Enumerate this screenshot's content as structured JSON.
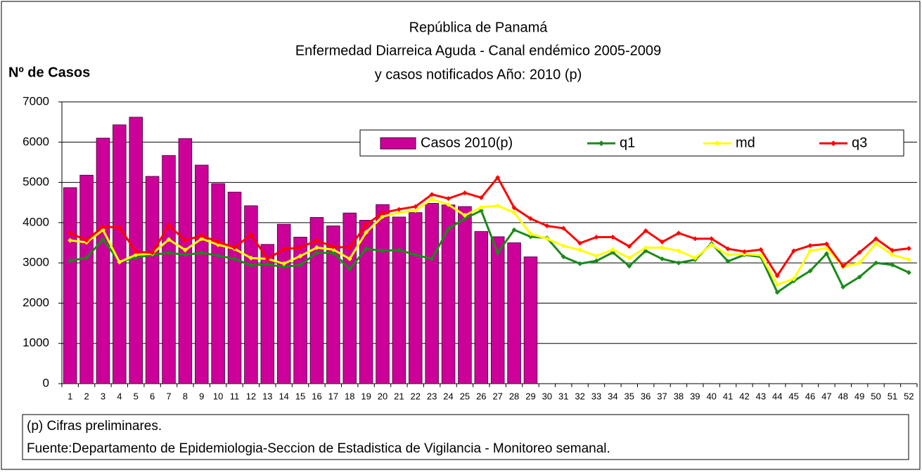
{
  "chart_data": {
    "type": "bar_line",
    "title": [
      "República de Panamá",
      "Enfermedad Diarreica Aguda - Canal endémico 2005-2009",
      "y casos notificados Año: 2010 (p)"
    ],
    "y_label": "Nº de Casos",
    "categories": [
      "1",
      "2",
      "3",
      "4",
      "5",
      "6",
      "7",
      "8",
      "9",
      "10",
      "11",
      "12",
      "13",
      "14",
      "15",
      "16",
      "17",
      "18",
      "19",
      "20",
      "21",
      "22",
      "23",
      "24",
      "25",
      "26",
      "27",
      "28",
      "29",
      "30",
      "31",
      "32",
      "33",
      "34",
      "35",
      "36",
      "37",
      "38",
      "39",
      "40",
      "41",
      "42",
      "43",
      "44",
      "45",
      "46",
      "47",
      "48",
      "49",
      "50",
      "51",
      "52"
    ],
    "series": [
      {
        "name": "Casos 2010(p)",
        "type": "bar",
        "color": "#cc0099",
        "values": [
          4870,
          5180,
          6100,
          6430,
          6620,
          5150,
          5670,
          6090,
          5430,
          4970,
          4760,
          4420,
          3460,
          3960,
          3640,
          4130,
          3920,
          4240,
          4060,
          4450,
          4140,
          4250,
          4480,
          4440,
          4400,
          3780,
          3650,
          3500,
          3150,
          null,
          null,
          null,
          null,
          null,
          null,
          null,
          null,
          null,
          null,
          null,
          null,
          null,
          null,
          null,
          null,
          null,
          null,
          null,
          null,
          null,
          null,
          null
        ]
      },
      {
        "name": "q1",
        "type": "line",
        "color": "#1a8a1a",
        "values": [
          3050,
          3130,
          3580,
          3030,
          3130,
          3200,
          3250,
          3200,
          3250,
          3180,
          3100,
          2940,
          2960,
          2900,
          2950,
          3250,
          3250,
          2850,
          3350,
          3300,
          3320,
          3200,
          3100,
          3850,
          4100,
          4300,
          3250,
          3820,
          3650,
          3620,
          3150,
          2980,
          3050,
          3260,
          2920,
          3300,
          3100,
          3000,
          3080,
          3480,
          3040,
          3200,
          3150,
          2270,
          2550,
          2800,
          3230,
          2400,
          2650,
          3000,
          2950,
          2760
        ]
      },
      {
        "name": "md",
        "type": "line",
        "color": "#ffff00",
        "values": [
          3560,
          3510,
          3820,
          3020,
          3200,
          3230,
          3580,
          3320,
          3600,
          3450,
          3350,
          3120,
          3100,
          2980,
          3170,
          3380,
          3330,
          3100,
          3760,
          4150,
          4250,
          4300,
          4580,
          4450,
          4180,
          4380,
          4420,
          4250,
          3720,
          3600,
          3420,
          3320,
          3170,
          3330,
          3120,
          3380,
          3380,
          3300,
          3120,
          3450,
          3200,
          3220,
          3190,
          2460,
          2600,
          3300,
          3370,
          2900,
          3000,
          3480,
          3200,
          3080
        ]
      },
      {
        "name": "q3",
        "type": "line",
        "color": "#ff0000",
        "values": [
          3740,
          3560,
          3900,
          3880,
          3280,
          3250,
          3930,
          3560,
          3680,
          3520,
          3380,
          3700,
          3100,
          3340,
          3380,
          3560,
          3400,
          3380,
          3950,
          4240,
          4330,
          4400,
          4700,
          4600,
          4740,
          4620,
          5120,
          4370,
          4100,
          3920,
          3860,
          3490,
          3640,
          3640,
          3410,
          3800,
          3520,
          3740,
          3600,
          3600,
          3350,
          3280,
          3330,
          2680,
          3300,
          3430,
          3470,
          2920,
          3260,
          3600,
          3310,
          3360
        ]
      }
    ],
    "ylim": [
      0,
      7000
    ],
    "yticks": [
      0,
      1000,
      2000,
      3000,
      4000,
      5000,
      6000,
      7000
    ],
    "grid": true,
    "legend": "top-right",
    "annotations": [
      "(p) Cifras preliminares.",
      "Fuente:Departamento de Epidemiologia-Seccion de Estadistica de Vigilancia - Monitoreo semanal."
    ]
  }
}
